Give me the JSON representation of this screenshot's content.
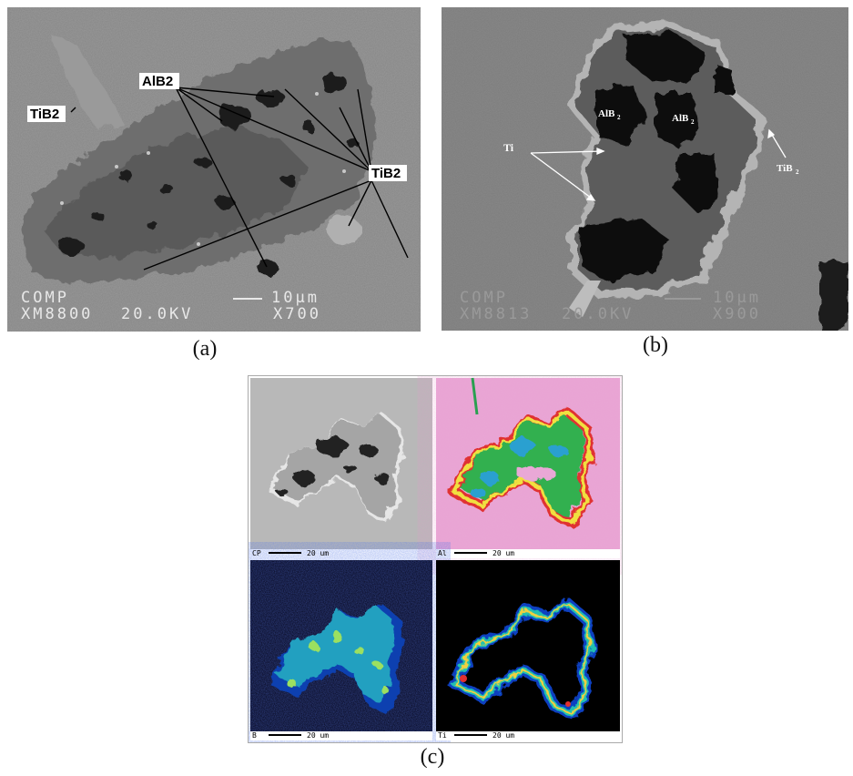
{
  "panel_a": {
    "labels": {
      "tib2_left": "TiB2",
      "alb2": "AlB2",
      "tib2_right": "TiB2"
    },
    "footer": {
      "mode": "COMP",
      "scale": "10µm",
      "id": "XM8800",
      "kv": "20.0KV",
      "mag": "X700"
    }
  },
  "panel_b": {
    "labels": {
      "alb2_1": "AlB",
      "alb2_2": "AlB",
      "sub": "2",
      "ti": "Ti",
      "tib2": "TiB"
    },
    "footer": {
      "mode": "COMP",
      "scale": "10µm",
      "id": "XM8813",
      "kv": "20.0KV",
      "mag": "X900"
    }
  },
  "panel_c": {
    "maps": [
      {
        "element": "CP",
        "scale": "20 um"
      },
      {
        "element": "Al",
        "scale": "20 um"
      },
      {
        "element": "B",
        "scale": "20 um"
      },
      {
        "element": "Ti",
        "scale": "20 um"
      }
    ]
  },
  "captions": {
    "a": "(a)",
    "b": "(b)",
    "c": "(c)"
  }
}
